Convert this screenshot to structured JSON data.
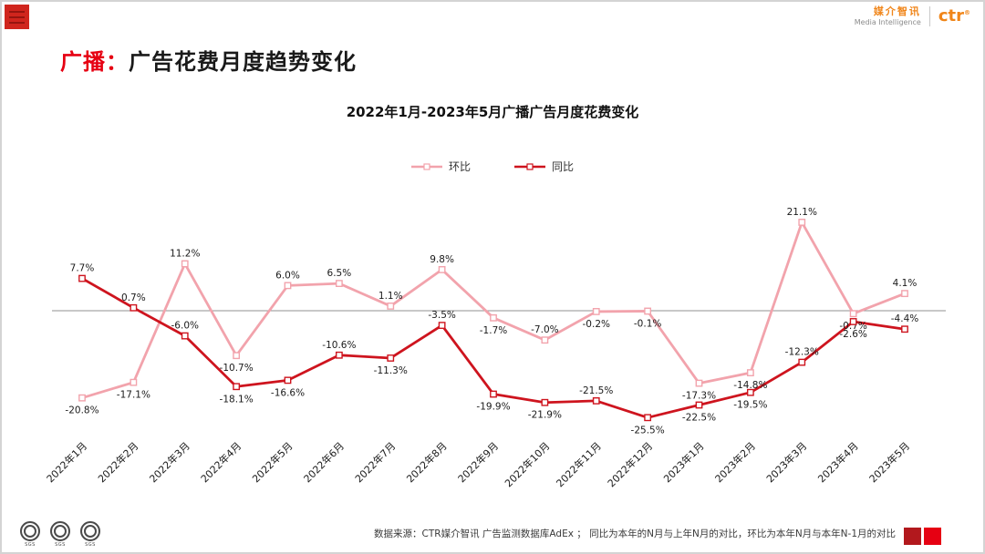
{
  "header": {
    "brand_cn": "媒介智讯",
    "brand_en": "Media Intelligence",
    "logo_text": "ctr",
    "logo_mark": "®"
  },
  "title": {
    "prefix": "广播：",
    "main": "广告花费月度趋势变化"
  },
  "colors": {
    "title_red": "#e60012",
    "huanbi_pink": "#f2a3ac",
    "tongbi_red": "#ce141e",
    "menu_red": "#d0251d",
    "brand_orange": "#f08519",
    "footer_square_left": "#b2181d",
    "footer_square_right": "#e60012",
    "zero_line_gray": "#909090"
  },
  "chart_data": {
    "type": "line",
    "title": "2022年1月-2023年5月广播广告月度花费变化",
    "unit": "%",
    "legend_position": "top",
    "zero_line": true,
    "ylim": [
      -30,
      25
    ],
    "categories": [
      "2022年1月",
      "2022年2月",
      "2022年3月",
      "2022年4月",
      "2022年5月",
      "2022年6月",
      "2022年7月",
      "2022年8月",
      "2022年9月",
      "2022年10月",
      "2022年11月",
      "2022年12月",
      "2023年1月",
      "2023年2月",
      "2023年3月",
      "2023年4月",
      "2023年5月"
    ],
    "series": [
      {
        "name": "环比",
        "color_key": "huanbi_pink",
        "values": [
          -20.8,
          -17.1,
          11.2,
          -10.7,
          6.0,
          6.5,
          1.1,
          9.8,
          -1.7,
          -7.0,
          -0.2,
          -0.1,
          -17.3,
          -14.8,
          21.1,
          -0.7,
          4.1
        ],
        "labels": [
          "-20.8%",
          "-17.1%",
          "11.2%",
          "-10.7%",
          "6.0%",
          "6.5%",
          "1.1%",
          "9.8%",
          "-1.7%",
          "-7.0%",
          "-0.2%",
          "-0.1%",
          "-17.3%",
          "-14.8%",
          "21.1%",
          "-0.7%",
          "4.1%"
        ],
        "label_side": [
          "below",
          "below",
          "above",
          "below",
          "above",
          "above",
          "above",
          "above",
          "below",
          "above",
          "below",
          "below",
          "below",
          "below",
          "above",
          "below",
          "above"
        ]
      },
      {
        "name": "同比",
        "color_key": "tongbi_red",
        "values": [
          7.7,
          0.7,
          -6.0,
          -18.1,
          -16.6,
          -10.6,
          -11.3,
          -3.5,
          -19.9,
          -21.9,
          -21.5,
          -25.5,
          -22.5,
          -19.5,
          -12.3,
          -2.6,
          -4.4
        ],
        "labels": [
          "7.7%",
          "0.7%",
          "-6.0%",
          "-18.1%",
          "-16.6%",
          "-10.6%",
          "-11.3%",
          "-3.5%",
          "-19.9%",
          "-21.9%",
          "-21.5%",
          "-25.5%",
          "-22.5%",
          "-19.5%",
          "-12.3%",
          "-2.6%",
          "-4.4%"
        ],
        "label_side": [
          "above",
          "above",
          "above",
          "below",
          "below",
          "above",
          "below",
          "above",
          "below",
          "below",
          "above",
          "below",
          "below",
          "below",
          "above",
          "below",
          "above"
        ]
      }
    ]
  },
  "footer": {
    "source": "数据来源：CTR媒介智讯 广告监测数据库AdEx ； 同比为本年的N月与上年N月的对比，环比为本年N月与本年N-1月的对比",
    "sgs_label": "SGS"
  }
}
